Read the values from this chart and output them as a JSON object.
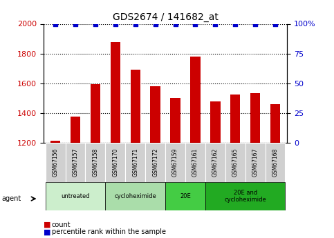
{
  "title": "GDS2674 / 141682_at",
  "samples": [
    "GSM67156",
    "GSM67157",
    "GSM67158",
    "GSM67170",
    "GSM67171",
    "GSM67172",
    "GSM67159",
    "GSM67161",
    "GSM67162",
    "GSM67165",
    "GSM67167",
    "GSM67168"
  ],
  "counts": [
    1215,
    1375,
    1595,
    1875,
    1690,
    1580,
    1500,
    1780,
    1480,
    1525,
    1535,
    1460
  ],
  "percentiles": [
    100,
    100,
    100,
    100,
    100,
    100,
    100,
    100,
    100,
    100,
    100,
    100
  ],
  "ylim_left": [
    1200,
    2000
  ],
  "ylim_right": [
    0,
    100
  ],
  "yticks_left": [
    1200,
    1400,
    1600,
    1800,
    2000
  ],
  "yticks_right": [
    0,
    25,
    50,
    75,
    100
  ],
  "bar_color": "#cc0000",
  "dot_color": "#0000cc",
  "bg_color": "#ffffff",
  "label_bg_color": "#d0d0d0",
  "group_colors": [
    "#cceecc",
    "#aaddaa",
    "#44cc44",
    "#22aa22"
  ],
  "groups": [
    {
      "label": "untreated",
      "start": 0,
      "end": 3
    },
    {
      "label": "cycloheximide",
      "start": 3,
      "end": 6
    },
    {
      "label": "20E",
      "start": 6,
      "end": 8
    },
    {
      "label": "20E and\ncycloheximide",
      "start": 8,
      "end": 12
    }
  ],
  "right_ylabel_color": "#0000cc",
  "left_ylabel_color": "#cc0000",
  "agent_label": "agent"
}
